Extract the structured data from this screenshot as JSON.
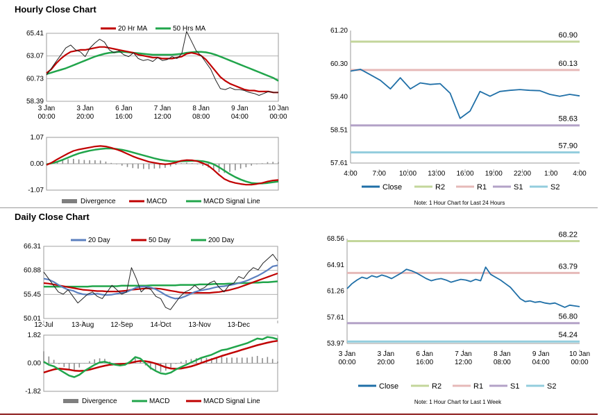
{
  "hourly": {
    "title": "Hourly Close Chart"
  },
  "daily": {
    "title": "Daily Close Chart"
  },
  "chart_data": [
    {
      "id": "hourly-price",
      "type": "line",
      "title": "Hourly Close Chart",
      "x_ticks": [
        "3 Jan\n00:00",
        "3 Jan\n20:00",
        "6 Jan\n16:00",
        "7 Jan\n12:00",
        "8 Jan\n08:00",
        "9 Jan\n04:00",
        "10 Jan\n00:00"
      ],
      "y_ticks": [
        "65.41",
        "63.07",
        "60.73",
        "58.39"
      ],
      "ylim": [
        58.39,
        65.41
      ],
      "legend": [
        "20 Hr MA",
        "50 Hrs MA"
      ],
      "series": [
        {
          "name": "Close",
          "color": "#222222",
          "values": [
            61.1,
            61.8,
            62.5,
            63.2,
            63.9,
            64.2,
            63.7,
            63.5,
            63.0,
            63.9,
            64.4,
            64.8,
            64.5,
            63.7,
            63.4,
            63.6,
            63.2,
            63.0,
            63.4,
            62.8,
            62.6,
            62.7,
            62.5,
            62.9,
            62.6,
            62.7,
            63.0,
            62.8,
            63.3,
            65.6,
            64.6,
            63.6,
            63.1,
            62.4,
            61.7,
            60.6,
            59.7,
            59.6,
            59.8,
            59.6,
            59.6,
            59.5,
            59.3,
            59.2,
            59.0,
            59.2,
            59.4,
            59.3,
            59.3
          ]
        },
        {
          "name": "20 Hr MA",
          "color": "#c00000",
          "values": [
            61.3,
            61.7,
            62.3,
            62.8,
            63.2,
            63.5,
            63.6,
            63.7,
            63.7,
            63.8,
            63.9,
            64.0,
            64.0,
            63.9,
            63.8,
            63.7,
            63.6,
            63.5,
            63.4,
            63.2,
            63.1,
            63.0,
            62.9,
            62.9,
            62.8,
            62.8,
            62.8,
            62.9,
            63.0,
            63.3,
            63.4,
            63.3,
            63.1,
            62.7,
            62.1,
            61.5,
            60.9,
            60.5,
            60.2,
            60.0,
            59.8,
            59.6,
            59.5,
            59.5,
            59.4,
            59.4,
            59.4,
            59.3,
            59.3
          ]
        },
        {
          "name": "50 Hrs MA",
          "color": "#21a54b",
          "values": [
            61.2,
            61.35,
            61.5,
            61.65,
            61.8,
            62.0,
            62.2,
            62.4,
            62.6,
            62.8,
            63.0,
            63.15,
            63.3,
            63.4,
            63.45,
            63.5,
            63.5,
            63.45,
            63.4,
            63.35,
            63.3,
            63.25,
            63.2,
            63.2,
            63.2,
            63.2,
            63.2,
            63.25,
            63.3,
            63.4,
            63.45,
            63.5,
            63.5,
            63.45,
            63.35,
            63.2,
            63.0,
            62.8,
            62.6,
            62.4,
            62.2,
            62.0,
            61.8,
            61.6,
            61.4,
            61.2,
            61.0,
            60.8,
            60.5
          ]
        }
      ]
    },
    {
      "id": "hourly-macd",
      "type": "line",
      "y_ticks": [
        "1.07",
        "0.00",
        "-1.07"
      ],
      "ylim": [
        -1.07,
        1.07
      ],
      "legend": [
        "Divergence",
        "MACD",
        "MACD Signal Line"
      ],
      "series": [
        {
          "name": "MACD",
          "color": "#c00000",
          "values": [
            -0.05,
            0.05,
            0.18,
            0.3,
            0.42,
            0.52,
            0.58,
            0.62,
            0.66,
            0.7,
            0.72,
            0.7,
            0.65,
            0.58,
            0.5,
            0.4,
            0.3,
            0.22,
            0.15,
            0.08,
            0.04,
            0.0,
            -0.02,
            0.0,
            0.05,
            0.12,
            0.15,
            0.14,
            0.1,
            0.02,
            -0.08,
            -0.25,
            -0.45,
            -0.62,
            -0.72,
            -0.78,
            -0.82,
            -0.85,
            -0.85,
            -0.82,
            -0.78,
            -0.72,
            -0.68,
            -0.66
          ]
        },
        {
          "name": "MACD Signal Line",
          "color": "#21a54b",
          "values": [
            -0.02,
            0.02,
            0.08,
            0.16,
            0.25,
            0.34,
            0.42,
            0.48,
            0.53,
            0.57,
            0.6,
            0.62,
            0.62,
            0.6,
            0.57,
            0.52,
            0.46,
            0.4,
            0.34,
            0.28,
            0.22,
            0.17,
            0.13,
            0.1,
            0.09,
            0.1,
            0.11,
            0.12,
            0.12,
            0.1,
            0.06,
            -0.02,
            -0.14,
            -0.28,
            -0.42,
            -0.54,
            -0.64,
            -0.72,
            -0.78,
            -0.8,
            -0.8,
            -0.78,
            -0.75,
            -0.72
          ]
        }
      ]
    },
    {
      "id": "hourly-pivot",
      "type": "line",
      "x_ticks": [
        "4:00",
        "7:00",
        "10:00",
        "13:00",
        "16:00",
        "19:00",
        "22:00",
        "1:00",
        "4:00"
      ],
      "y_ticks": [
        "61.20",
        "60.30",
        "59.40",
        "58.51",
        "57.61"
      ],
      "ylim": [
        57.61,
        61.2
      ],
      "legend": [
        "Close",
        "R2",
        "R1",
        "S1",
        "S2"
      ],
      "note": "Note: 1 Hour Chart for Last 24 Hours",
      "levels": [
        {
          "name": "R2",
          "value": 60.9,
          "label": "60.90",
          "color": "#c3d69b"
        },
        {
          "name": "R1",
          "value": 60.13,
          "label": "60.13",
          "color": "#e6b9b8"
        },
        {
          "name": "S1",
          "value": 58.63,
          "label": "58.63",
          "color": "#b3a2c7"
        },
        {
          "name": "S2",
          "value": 57.9,
          "label": "57.90",
          "color": "#93cddd"
        }
      ],
      "series": [
        {
          "name": "Close",
          "color": "#1f6fa7",
          "values": [
            60.1,
            60.15,
            60.0,
            59.85,
            59.62,
            59.92,
            59.62,
            59.78,
            59.74,
            59.76,
            59.5,
            58.82,
            59.02,
            59.55,
            59.42,
            59.55,
            59.58,
            59.6,
            59.58,
            59.57,
            59.47,
            59.42,
            59.47,
            59.43
          ]
        }
      ]
    },
    {
      "id": "daily-price",
      "type": "line",
      "title": "Daily Close Chart",
      "x_ticks": [
        "12-Jul",
        "13-Aug",
        "12-Sep",
        "14-Oct",
        "13-Nov",
        "13-Dec"
      ],
      "y_ticks": [
        "66.31",
        "60.88",
        "55.45",
        "50.01"
      ],
      "ylim": [
        50.01,
        66.31
      ],
      "legend": [
        "20 Day",
        "50 Day",
        "200 Day"
      ],
      "series": [
        {
          "name": "Close",
          "color": "#222222",
          "values": [
            60.5,
            59.0,
            57.5,
            56.0,
            55.5,
            56.5,
            55.0,
            53.5,
            54.5,
            55.5,
            56.0,
            55.0,
            54.5,
            56.0,
            57.5,
            56.5,
            55.5,
            56.0,
            61.5,
            59.0,
            56.0,
            57.0,
            56.5,
            55.0,
            54.5,
            52.5,
            52.0,
            53.5,
            55.0,
            56.0,
            56.5,
            57.5,
            56.5,
            57.0,
            58.0,
            58.5,
            57.0,
            56.0,
            57.5,
            58.0,
            59.5,
            59.0,
            60.5,
            61.5,
            61.0,
            62.5,
            63.5,
            64.5,
            63.0
          ]
        },
        {
          "name": "20 Day",
          "color": "#5b7fbf",
          "values": [
            59.0,
            58.8,
            58.3,
            57.6,
            57.0,
            56.5,
            56.3,
            55.8,
            55.5,
            55.4,
            55.5,
            55.6,
            55.4,
            55.3,
            55.4,
            55.6,
            55.8,
            56.0,
            56.5,
            57.0,
            57.2,
            57.2,
            57.0,
            56.6,
            56.0,
            55.3,
            54.8,
            54.5,
            54.6,
            55.0,
            55.5,
            56.0,
            56.3,
            56.5,
            56.7,
            57.0,
            57.2,
            57.3,
            57.5,
            57.7,
            58.0,
            58.3,
            58.7,
            59.2,
            59.7,
            60.3,
            61.0,
            61.8,
            62.0
          ]
        },
        {
          "name": "50 Day",
          "color": "#c00000",
          "values": [
            58.0,
            57.9,
            57.7,
            57.5,
            57.3,
            57.1,
            56.9,
            56.7,
            56.5,
            56.4,
            56.3,
            56.2,
            56.2,
            56.1,
            56.1,
            56.1,
            56.2,
            56.3,
            56.5,
            56.6,
            56.7,
            56.8,
            56.8,
            56.8,
            56.7,
            56.5,
            56.3,
            56.1,
            55.9,
            55.8,
            55.8,
            55.8,
            55.8,
            55.8,
            55.8,
            55.9,
            56.0,
            56.2,
            56.4,
            56.7,
            57.0,
            57.4,
            57.8,
            58.2,
            58.6,
            59.0,
            59.4,
            59.8,
            60.2
          ]
        },
        {
          "name": "200 Day",
          "color": "#21a54b",
          "values": [
            57.2,
            57.2,
            57.2,
            57.2,
            57.2,
            57.2,
            57.2,
            57.2,
            57.2,
            57.2,
            57.3,
            57.3,
            57.3,
            57.3,
            57.3,
            57.3,
            57.4,
            57.4,
            57.4,
            57.4,
            57.4,
            57.4,
            57.5,
            57.5,
            57.5,
            57.5,
            57.5,
            57.5,
            57.6,
            57.6,
            57.6,
            57.6,
            57.7,
            57.7,
            57.7,
            57.8,
            57.8,
            57.8,
            57.9,
            57.9,
            58.0,
            58.0,
            58.0,
            58.1,
            58.1,
            58.2,
            58.2,
            58.3,
            58.4
          ]
        }
      ]
    },
    {
      "id": "daily-macd",
      "type": "line",
      "y_ticks": [
        "1.82",
        "0.00",
        "-1.82"
      ],
      "ylim": [
        -1.82,
        1.82
      ],
      "legend": [
        "Divergence",
        "MACD",
        "MACD Signal Line"
      ],
      "series": [
        {
          "name": "MACD",
          "color": "#21a54b",
          "values": [
            0.1,
            -0.1,
            -0.2,
            -0.4,
            -0.6,
            -0.8,
            -0.9,
            -0.75,
            -0.5,
            -0.3,
            -0.1,
            0.05,
            0.1,
            0.0,
            -0.1,
            -0.15,
            -0.1,
            0.1,
            0.4,
            0.3,
            0.0,
            -0.3,
            -0.5,
            -0.65,
            -0.7,
            -0.6,
            -0.4,
            -0.25,
            -0.1,
            0.05,
            0.2,
            0.35,
            0.45,
            0.55,
            0.7,
            0.85,
            0.9,
            1.0,
            1.1,
            1.2,
            1.3,
            1.45,
            1.6,
            1.55,
            1.7,
            1.65,
            1.55
          ]
        },
        {
          "name": "MACD Signal Line",
          "color": "#c00000",
          "values": [
            -0.6,
            -0.5,
            -0.4,
            -0.35,
            -0.38,
            -0.42,
            -0.48,
            -0.5,
            -0.48,
            -0.42,
            -0.33,
            -0.24,
            -0.16,
            -0.1,
            -0.07,
            -0.05,
            -0.03,
            0.02,
            0.1,
            0.15,
            0.13,
            0.07,
            -0.02,
            -0.14,
            -0.26,
            -0.34,
            -0.36,
            -0.34,
            -0.28,
            -0.2,
            -0.1,
            0.02,
            0.14,
            0.25,
            0.36,
            0.47,
            0.57,
            0.67,
            0.77,
            0.87,
            0.97,
            1.07,
            1.17,
            1.25,
            1.33,
            1.4,
            1.45
          ]
        }
      ]
    },
    {
      "id": "daily-pivot",
      "type": "line",
      "x_ticks": [
        "3 Jan\n00:00",
        "3 Jan\n20:00",
        "6 Jan\n16:00",
        "7 Jan\n12:00",
        "8 Jan\n08:00",
        "9 Jan\n04:00",
        "10 Jan\n00:00"
      ],
      "y_ticks": [
        "68.56",
        "64.91",
        "61.26",
        "57.61",
        "53.97"
      ],
      "ylim": [
        53.97,
        68.56
      ],
      "legend": [
        "Close",
        "R2",
        "R1",
        "S1",
        "S2"
      ],
      "note": "Note: 1 Hour Chart for Last 1 Week",
      "levels": [
        {
          "name": "R2",
          "value": 68.22,
          "label": "68.22",
          "color": "#c3d69b"
        },
        {
          "name": "R1",
          "value": 63.79,
          "label": "63.79",
          "color": "#e6b9b8"
        },
        {
          "name": "S1",
          "value": 56.8,
          "label": "56.80",
          "color": "#b3a2c7"
        },
        {
          "name": "S2",
          "value": 54.24,
          "label": "54.24",
          "color": "#93cddd"
        }
      ],
      "series": [
        {
          "name": "Close",
          "color": "#1f6fa7",
          "values": [
            61.6,
            62.3,
            62.8,
            63.2,
            63.0,
            63.4,
            63.2,
            63.5,
            63.3,
            63.0,
            63.4,
            63.8,
            64.3,
            64.1,
            63.8,
            63.4,
            63.0,
            62.7,
            62.9,
            63.0,
            62.8,
            62.5,
            62.7,
            62.9,
            62.8,
            62.6,
            62.9,
            62.7,
            64.6,
            63.6,
            63.2,
            62.8,
            62.3,
            61.8,
            61.0,
            60.2,
            59.8,
            59.9,
            59.7,
            59.8,
            59.6,
            59.5,
            59.6,
            59.3,
            59.0,
            59.3,
            59.2,
            59.1
          ]
        }
      ]
    }
  ]
}
